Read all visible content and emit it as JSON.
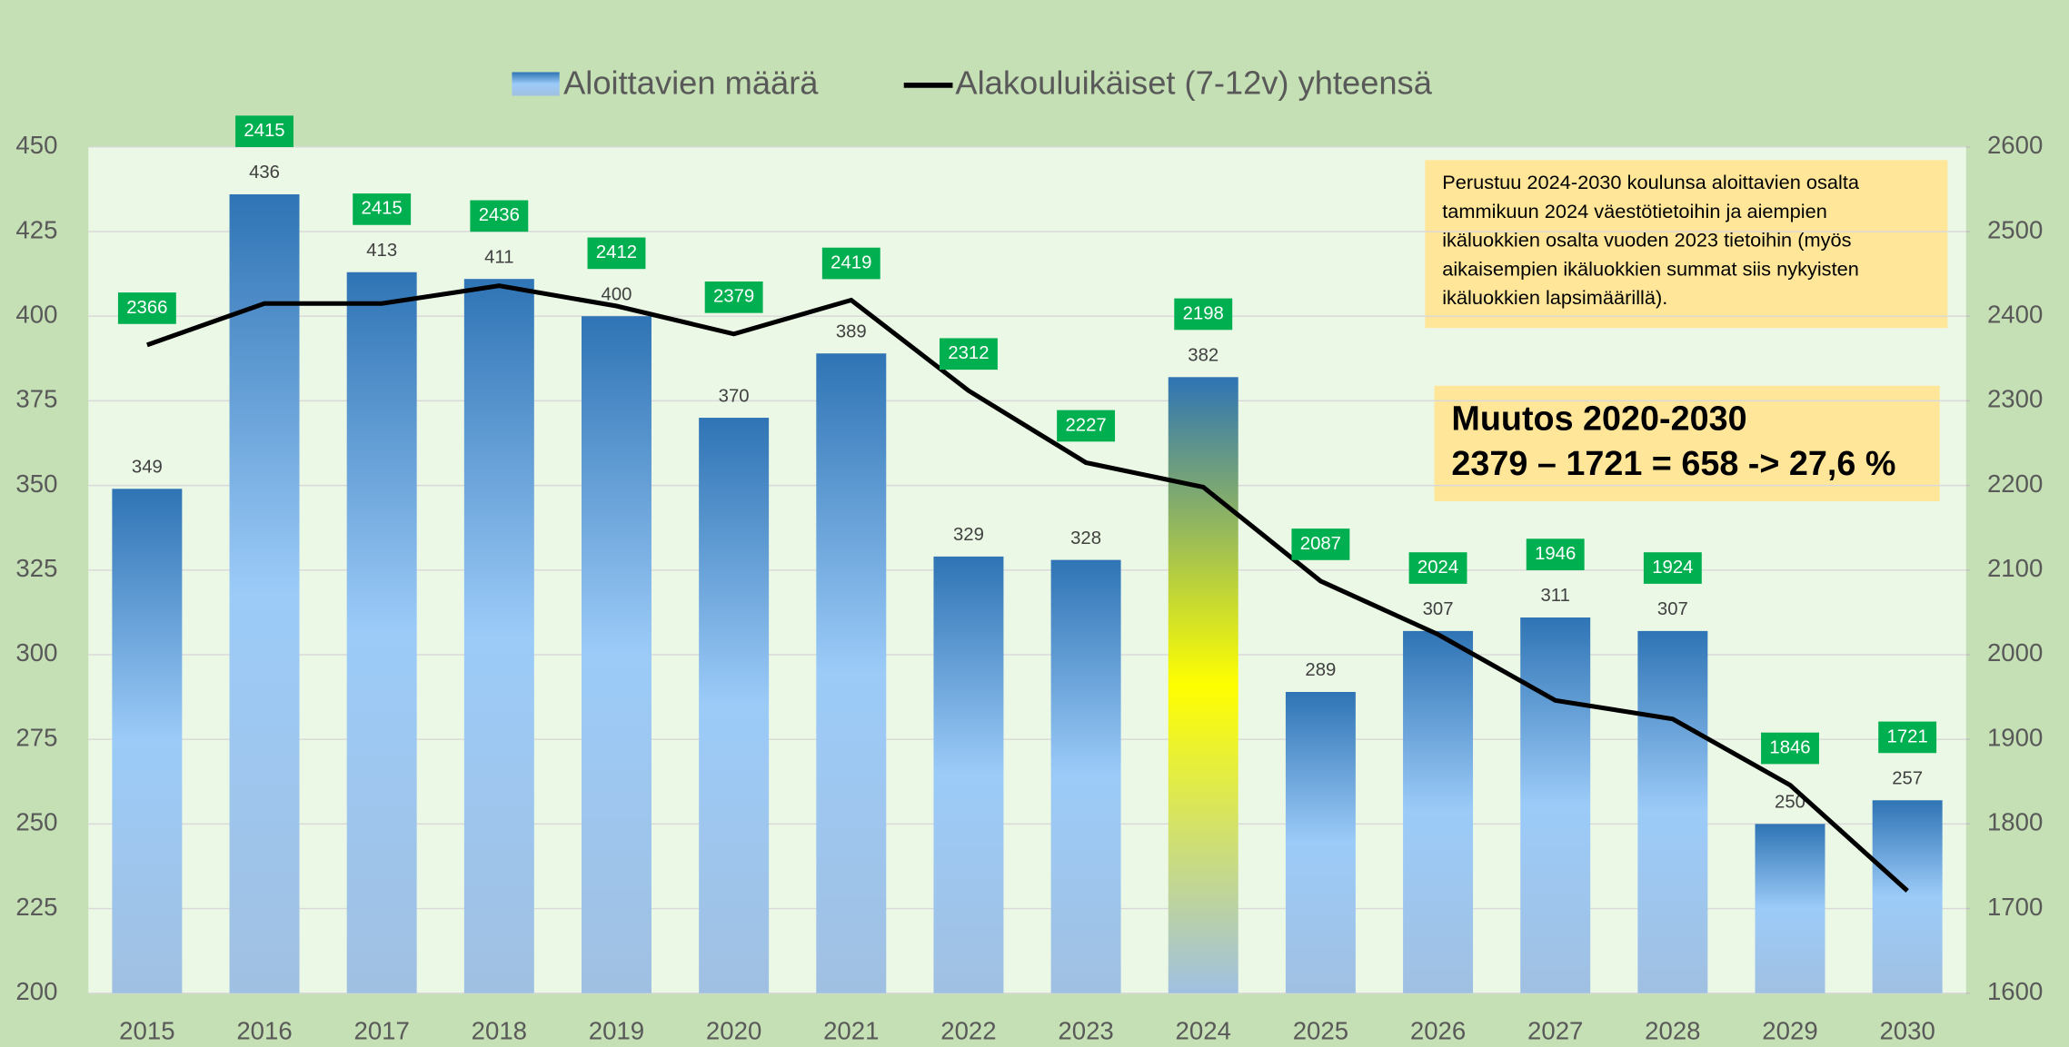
{
  "chart_data": {
    "type": "bar",
    "categories": [
      "2015",
      "2016",
      "2017",
      "2018",
      "2019",
      "2020",
      "2021",
      "2022",
      "2023",
      "2024",
      "2025",
      "2026",
      "2027",
      "2028",
      "2029",
      "2030"
    ],
    "series": [
      {
        "name": "Aloittavien määrä",
        "type": "bar",
        "color": "#2f74b5",
        "colors": [
          "#9ccbf8",
          "#9ccbf8",
          "#9ccbf8",
          "#9ccbf8",
          "#9ccbf8",
          "#9ccbf8",
          "#9ccbf8",
          "#9ccbf8",
          "#9ccbf8",
          "#ffff00",
          "#9ccbf8",
          "#9ccbf8",
          "#9ccbf8",
          "#9ccbf8",
          "#9ccbf8",
          "#9ccbf8"
        ],
        "values": [
          349,
          436,
          413,
          411,
          400,
          370,
          389,
          329,
          328,
          382,
          289,
          307,
          311,
          307,
          250,
          257
        ]
      },
      {
        "name": "Alakouluikäiset (7-12v) yhteensä",
        "type": "line",
        "axis": "y2",
        "color": "#000000",
        "label_color": "#00b050",
        "values": [
          2366,
          2415,
          2415,
          2436,
          2412,
          2379,
          2419,
          2312,
          2227,
          2198,
          2087,
          2024,
          1946,
          1924,
          1846,
          1721
        ]
      }
    ],
    "ylim": [
      200,
      450
    ],
    "yticks": [
      200,
      225,
      250,
      275,
      300,
      325,
      350,
      375,
      400,
      425,
      450
    ],
    "y2lim": [
      1600,
      2600
    ],
    "y2ticks": [
      1600,
      1700,
      1800,
      1900,
      2000,
      2100,
      2200,
      2300,
      2400,
      2500,
      2600
    ],
    "grid": true,
    "annotations": {
      "note": [
        "Perustuu 2024-2030 koulunsa aloittavien osalta",
        "tammikuun 2024 väestötietoihin ja aiempien",
        "ikäluokkien osalta vuoden 2023 tietoihin (myös",
        "aikaisempien ikäluokkien summat siis nykyisten",
        "ikäluokkien lapsimäärillä)."
      ],
      "change": [
        "Muutos 2020-2030",
        "2379 – 1721 = 658 -> 27,6 %"
      ]
    }
  }
}
